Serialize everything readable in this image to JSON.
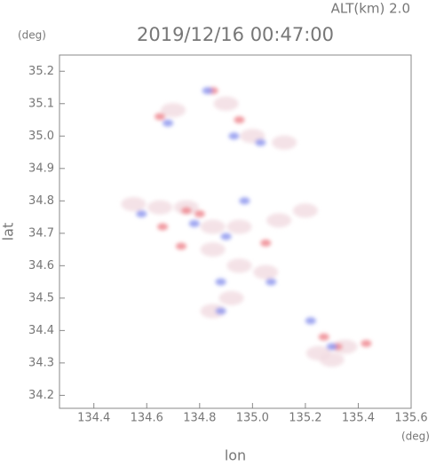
{
  "chart_data": {
    "type": "scatter",
    "title": "2019/12/16 00:47:00",
    "subtitle": "ALT(km) 2.0",
    "y_unit": "(deg)",
    "x_unit": "(deg)",
    "xlabel": "lon",
    "ylabel": "lat",
    "xlim": [
      134.27,
      135.6
    ],
    "ylim": [
      34.16,
      35.25
    ],
    "xticks": [
      134.4,
      134.6,
      134.8,
      {
        "value": 135,
        "label": "135.0"
      },
      135.2,
      135.4,
      135.6
    ],
    "yticks": [
      34.2,
      34.3,
      34.4,
      34.5,
      34.6,
      34.7,
      34.8,
      34.9,
      {
        "value": 35,
        "label": "35.0"
      },
      35.1,
      35.2
    ],
    "series": [
      {
        "color": "#f2dde3",
        "x": [
          134.75,
          134.65,
          134.55,
          134.85,
          134.95,
          135.1,
          135.2,
          134.95,
          135.05,
          134.92,
          134.85,
          135.25,
          135.3,
          135.35,
          134.7,
          134.9,
          135.0,
          135.12,
          134.85
        ],
        "y": [
          34.78,
          34.78,
          34.79,
          34.72,
          34.72,
          34.74,
          34.77,
          34.6,
          34.58,
          34.5,
          34.46,
          34.33,
          34.31,
          34.35,
          35.08,
          35.1,
          35.0,
          34.98,
          34.65
        ]
      },
      {
        "color": "#ee8890",
        "x": [
          134.65,
          134.75,
          134.8,
          135.32,
          135.43,
          134.85,
          134.66,
          135.05,
          135.27,
          134.73,
          134.95
        ],
        "y": [
          35.06,
          34.77,
          34.76,
          34.35,
          34.36,
          35.14,
          34.72,
          34.67,
          34.38,
          34.66,
          35.05
        ]
      },
      {
        "color": "#8f98ee",
        "x": [
          134.68,
          134.83,
          134.93,
          135.03,
          134.9,
          134.58,
          135.07,
          134.88,
          135.3,
          134.97,
          134.78,
          134.88,
          135.22
        ],
        "y": [
          35.04,
          35.14,
          35.0,
          34.98,
          34.69,
          34.76,
          34.55,
          34.55,
          34.35,
          34.8,
          34.73,
          34.46,
          34.43
        ]
      }
    ]
  }
}
